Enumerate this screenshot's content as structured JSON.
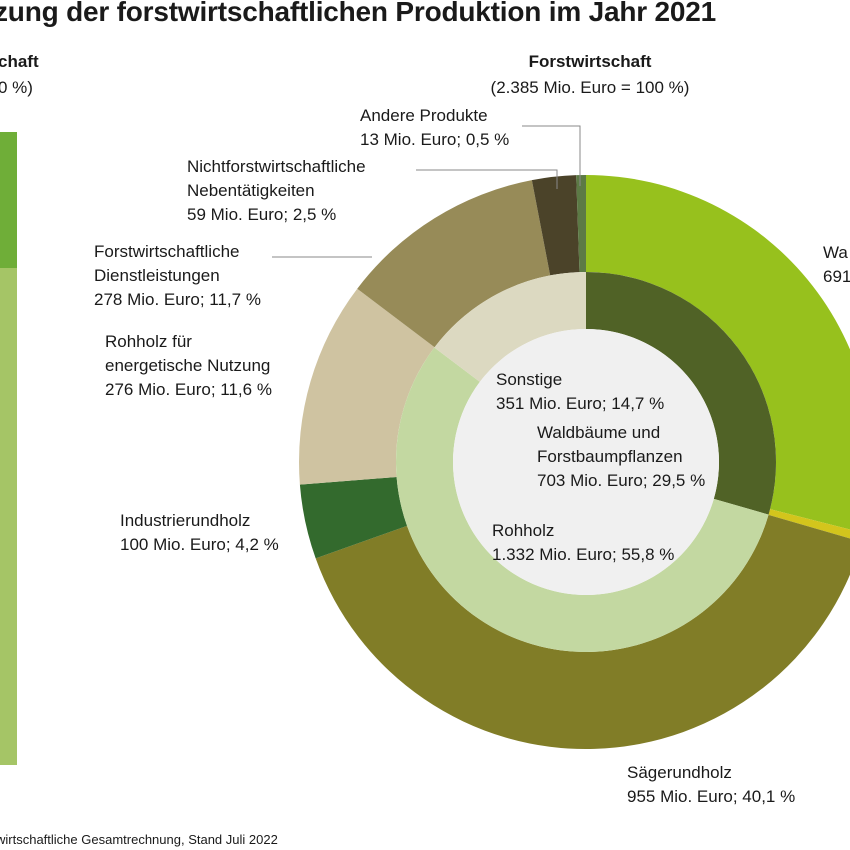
{
  "title": "zung der forstwirtschaftlichen Produktion im Jahr 2021",
  "left_panel": {
    "heading": "chaft",
    "subheading": "0 %)"
  },
  "ring_heading": {
    "title": "Forstwirtschaft",
    "subtitle": "(2.385 Mio. Euro = 100 %)"
  },
  "source": "wirtschaftliche Gesamtrechnung, Stand Juli 2022",
  "colors": {
    "left_bar_top": "#6fae38",
    "left_bar_bottom": "#a5c566",
    "rohholz_inner": "#c3d8a1",
    "sonstige_inner": "#dcd9c1",
    "waldbaeume_inner": "#506226",
    "center": "#f0f0f0"
  },
  "chart_data": [
    {
      "type": "pie",
      "ring": "outer",
      "total": 2385,
      "slices": [
        {
          "name": "Waldbäume",
          "label_lines": [
            "Wa",
            "691"
          ],
          "value": 691,
          "color": "#97c11d"
        },
        {
          "name": "",
          "label_lines": [],
          "value": 12,
          "color": "#d3c51c"
        },
        {
          "name": "Sägerundholz",
          "label_lines": [
            "Sägerundholz",
            "955 Mio. Euro; 40,1 %"
          ],
          "value": 955,
          "color": "#817d27"
        },
        {
          "name": "Industrierundholz",
          "label_lines": [
            "Industrierundholz",
            "100 Mio. Euro; 4,2 %"
          ],
          "value": 100,
          "color": "#336a2d"
        },
        {
          "name": "Rohholz für energetische Nutzung",
          "label_lines": [
            "Rohholz für",
            "energetische Nutzung",
            "276 Mio. Euro; 11,6 %"
          ],
          "value": 276,
          "color": "#cfc3a1"
        },
        {
          "name": "Forstwirtschaftliche Dienstleistungen",
          "label_lines": [
            "Forstwirtschaftliche",
            "Dienstleistungen",
            "278 Mio. Euro; 11,7 %"
          ],
          "value": 278,
          "color": "#978b58"
        },
        {
          "name": "Nichtforstwirtschaftliche Nebentätigkeiten",
          "label_lines": [
            "Nichtforstwirtschaftliche",
            "Nebentätigkeiten",
            "59 Mio. Euro; 2,5 %"
          ],
          "value": 59,
          "color": "#4b4329"
        },
        {
          "name": "Andere Produkte",
          "label_lines": [
            "Andere Produkte",
            "13 Mio. Euro; 0,5 %"
          ],
          "value": 13,
          "color": "#5c7a45"
        }
      ]
    },
    {
      "type": "pie",
      "ring": "inner",
      "total": 2386,
      "slices": [
        {
          "name": "Waldbäume und Forstbaumpflanzen",
          "label_lines": [
            "Waldbäume und",
            "Forstbaumpflanzen",
            "703 Mio. Euro; 29,5 %"
          ],
          "value": 703,
          "color": "#506226"
        },
        {
          "name": "Rohholz",
          "label_lines": [
            "Rohholz",
            "1.332 Mio. Euro; 55,8 %"
          ],
          "value": 1332,
          "color": "#c3d8a1"
        },
        {
          "name": "Sonstige",
          "label_lines": [
            "Sonstige",
            "351 Mio. Euro; 14,7 %"
          ],
          "value": 351,
          "color": "#dcd9c1"
        }
      ]
    }
  ]
}
